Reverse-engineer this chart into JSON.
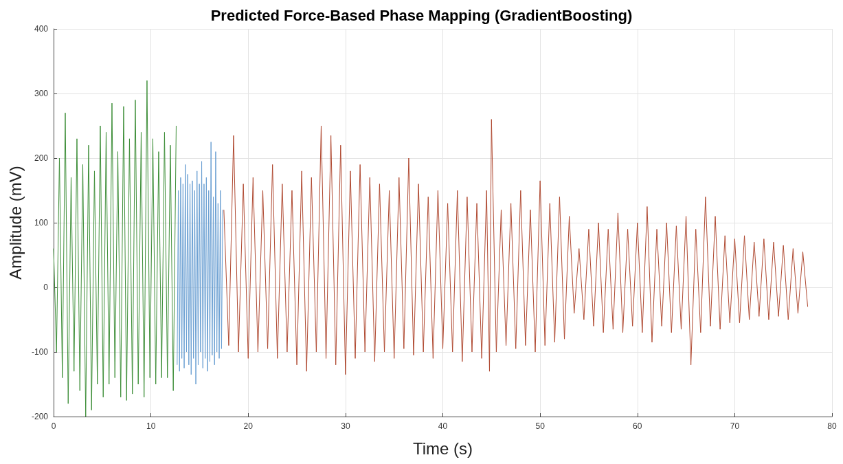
{
  "chart_data": {
    "type": "line",
    "title": "Predicted Force-Based Phase Mapping (GradientBoosting)",
    "xlabel": "Time (s)",
    "ylabel": "Amplitude (mV)",
    "xlim": [
      0,
      80
    ],
    "xticks": [
      0,
      10,
      20,
      30,
      40,
      50,
      60,
      70,
      80
    ],
    "ylim": [
      -200,
      400
    ],
    "yticks": [
      -200,
      -100,
      0,
      100,
      200,
      300,
      400
    ],
    "grid": true,
    "marker": "none",
    "line_style": "solid",
    "series": [
      {
        "color": "#3f8f3a",
        "x": [
          0,
          0.3,
          0.6,
          0.9,
          1.2,
          1.5,
          1.8,
          2.1,
          2.4,
          2.7,
          3.0,
          3.3,
          3.6,
          3.9,
          4.2,
          4.5,
          4.8,
          5.1,
          5.4,
          5.7,
          6.0,
          6.3,
          6.6,
          6.9,
          7.2,
          7.5,
          7.8,
          8.1,
          8.4,
          8.7,
          9.0,
          9.3,
          9.6,
          9.9,
          10.2,
          10.5,
          10.8,
          11.1,
          11.4,
          11.7,
          12.0,
          12.3,
          12.6
        ],
        "values": [
          60,
          -100,
          200,
          -140,
          270,
          -180,
          170,
          -130,
          230,
          -160,
          190,
          -200,
          220,
          -190,
          180,
          -150,
          250,
          -170,
          240,
          -150,
          285,
          -140,
          210,
          -170,
          280,
          -175,
          230,
          -165,
          290,
          -150,
          240,
          -170,
          320,
          -140,
          230,
          -150,
          210,
          -140,
          240,
          -140,
          220,
          -160,
          250
        ]
      },
      {
        "color": "#6a9fd2",
        "x": [
          12.7,
          12.82,
          12.94,
          13.06,
          13.18,
          13.3,
          13.42,
          13.54,
          13.66,
          13.78,
          13.9,
          14.02,
          14.14,
          14.26,
          14.38,
          14.5,
          14.62,
          14.74,
          14.86,
          14.98,
          15.1,
          15.22,
          15.34,
          15.46,
          15.58,
          15.7,
          15.82,
          15.94,
          16.06,
          16.18,
          16.3,
          16.42,
          16.54,
          16.66,
          16.78,
          16.9,
          17.02,
          17.14,
          17.26,
          17.38
        ],
        "values": [
          -120,
          150,
          -130,
          170,
          -110,
          160,
          -125,
          190,
          -100,
          175,
          -120,
          160,
          -135,
          165,
          -110,
          150,
          -150,
          180,
          -120,
          160,
          -100,
          195,
          -125,
          160,
          -110,
          170,
          -130,
          150,
          -115,
          225,
          -105,
          140,
          -120,
          210,
          -100,
          130,
          -110,
          150,
          -95,
          120
        ]
      },
      {
        "color": "#b04a32",
        "x": [
          17.5,
          18,
          18.5,
          19,
          19.5,
          20,
          20.5,
          21,
          21.5,
          22,
          22.5,
          23,
          23.5,
          24,
          24.5,
          25,
          25.5,
          26,
          26.5,
          27,
          27.5,
          28,
          28.5,
          29,
          29.5,
          30,
          30.5,
          31,
          31.5,
          32,
          32.5,
          33,
          33.5,
          34,
          34.5,
          35,
          35.5,
          36,
          36.5,
          37,
          37.5,
          38,
          38.5,
          39,
          39.5,
          40,
          40.5,
          41,
          41.5,
          42,
          42.5,
          43,
          43.5,
          44,
          44.5,
          44.8,
          45,
          45.5,
          46,
          46.5,
          47,
          47.5,
          48,
          48.5,
          49,
          49.5,
          50,
          50.5,
          51,
          51.5,
          52,
          52.5,
          53,
          53.5,
          54,
          54.5,
          55,
          55.5,
          56,
          56.5,
          57,
          57.5,
          58,
          58.5,
          59,
          59.5,
          60,
          60.5,
          61,
          61.5,
          62,
          62.5,
          63,
          63.5,
          64,
          64.5,
          65,
          65.5,
          66,
          66.5,
          67,
          67.5,
          68,
          68.5,
          69,
          69.5,
          70,
          70.5,
          71,
          71.5,
          72,
          72.5,
          73,
          73.5,
          74,
          74.5,
          75,
          75.5,
          76,
          76.5,
          77,
          77.5
        ],
        "values": [
          120,
          -90,
          235,
          -100,
          160,
          -110,
          170,
          -100,
          150,
          -95,
          190,
          -110,
          160,
          -100,
          150,
          -120,
          180,
          -130,
          170,
          -100,
          250,
          -110,
          235,
          -120,
          220,
          -135,
          180,
          -110,
          190,
          -100,
          170,
          -115,
          160,
          -100,
          150,
          -110,
          170,
          -95,
          200,
          -105,
          160,
          -100,
          140,
          -110,
          150,
          -95,
          130,
          -100,
          150,
          -115,
          140,
          -100,
          130,
          -110,
          150,
          -130,
          260,
          -100,
          120,
          -90,
          130,
          -95,
          150,
          -90,
          120,
          -100,
          165,
          -90,
          130,
          -85,
          140,
          -80,
          110,
          -40,
          60,
          -50,
          90,
          -60,
          100,
          -70,
          90,
          -65,
          115,
          -70,
          90,
          -60,
          100,
          -70,
          125,
          -85,
          90,
          -60,
          100,
          -70,
          95,
          -65,
          110,
          -120,
          90,
          -70,
          140,
          -60,
          110,
          -65,
          80,
          -55,
          75,
          -55,
          80,
          -50,
          70,
          -45,
          75,
          -50,
          70,
          -45,
          65,
          -50,
          60,
          -40,
          55,
          -30
        ]
      }
    ]
  }
}
